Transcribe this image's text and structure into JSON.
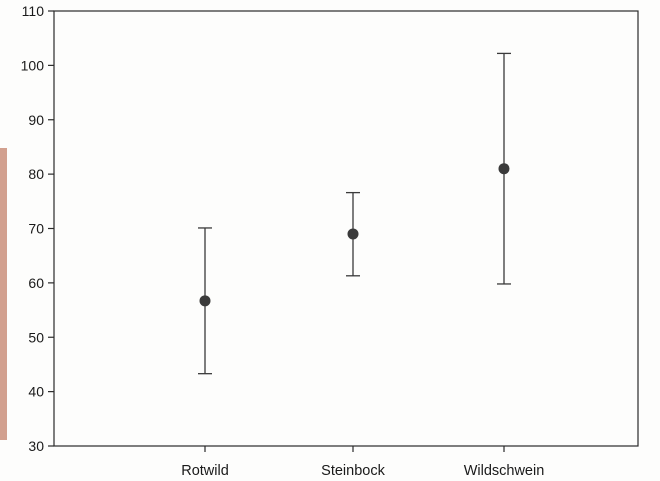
{
  "chart_data": {
    "type": "scatter",
    "subtype": "mean-with-error-bars",
    "title": "",
    "xlabel": "",
    "ylabel": "",
    "categories": [
      "Rotwild",
      "Steinbock",
      "Wildschwein"
    ],
    "series": [
      {
        "mean": [
          56.7,
          69.0,
          81.0
        ],
        "upper": [
          70.1,
          76.6,
          102.2
        ],
        "lower": [
          43.3,
          61.3,
          59.8
        ]
      }
    ],
    "ylim": [
      30,
      110
    ],
    "yticks": [
      30,
      40,
      50,
      60,
      70,
      80,
      90,
      100,
      110
    ],
    "grid": false,
    "legend": "none",
    "colors": {
      "marker": "#3a3a3a",
      "errorbar": "#3a3a3a",
      "axis": "#2a2a2a",
      "side_strip": "#d2a08f"
    }
  }
}
